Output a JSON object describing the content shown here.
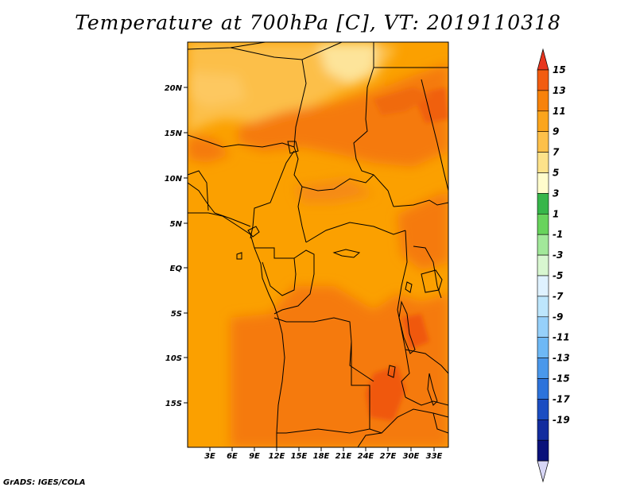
{
  "title": "Temperature at 700hPa [C], VT: 2019110318",
  "credit": "GrADS: IGES/COLA",
  "map": {
    "lat_labels": [
      "20N",
      "15N",
      "10N",
      "5N",
      "EQ",
      "5S",
      "10S",
      "15S"
    ],
    "lon_labels": [
      "3E",
      "6E",
      "9E",
      "12E",
      "15E",
      "18E",
      "21E",
      "24E",
      "27E",
      "30E",
      "33E"
    ]
  },
  "colorbar": {
    "labels": [
      "15",
      "13",
      "11",
      "9",
      "7",
      "5",
      "3",
      "1",
      "-1",
      "-3",
      "-5",
      "-7",
      "-9",
      "-11",
      "-13",
      "-15",
      "-17",
      "-19"
    ],
    "colors": [
      "#e8351e",
      "#f25c10",
      "#f7820a",
      "#fba51c",
      "#fdc04a",
      "#fde28a",
      "#fffccc",
      "#37b64a",
      "#68d35c",
      "#a2e89a",
      "#d8f7d0",
      "#dff2ff",
      "#bde6fc",
      "#96d0fa",
      "#6eb8f5",
      "#4a98eb",
      "#2d73db",
      "#1b4dc2",
      "#122c9e",
      "#0a117a",
      "#d7d6f5"
    ]
  },
  "palette": {
    "region_base": "#fba000",
    "warm": "#f57a10",
    "hot": "#f05a0a",
    "cool": "#fcc04c",
    "coolest": "#fde49a"
  }
}
